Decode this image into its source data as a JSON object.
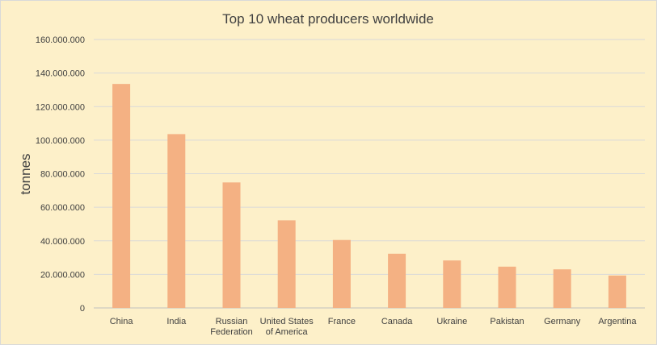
{
  "chart_data": {
    "type": "bar",
    "title": "Top 10 wheat producers worldwide",
    "xlabel": "",
    "ylabel": "tonnes",
    "categories": [
      [
        "China"
      ],
      [
        "India"
      ],
      [
        "Russian",
        "Federation"
      ],
      [
        "United States",
        "of America"
      ],
      [
        "France"
      ],
      [
        "Canada"
      ],
      [
        "Ukraine"
      ],
      [
        "Pakistan"
      ],
      [
        "Germany"
      ],
      [
        "Argentina"
      ]
    ],
    "values": [
      133500000,
      103600000,
      74800000,
      52200000,
      40500000,
      32300000,
      28300000,
      24600000,
      23000000,
      19300000
    ],
    "ylim": [
      0,
      160000000
    ],
    "yticks": [
      "0",
      "20.000.000",
      "40.000.000",
      "60.000.000",
      "80.000.000",
      "100.000.000",
      "120.000.000",
      "140.000.000",
      "160.000.000"
    ],
    "grid": true,
    "legend": "none",
    "colors": {
      "background": "#fdf0c9",
      "bar": "#f4b183",
      "grid": "#d9d9d9",
      "text": "#404040"
    }
  }
}
